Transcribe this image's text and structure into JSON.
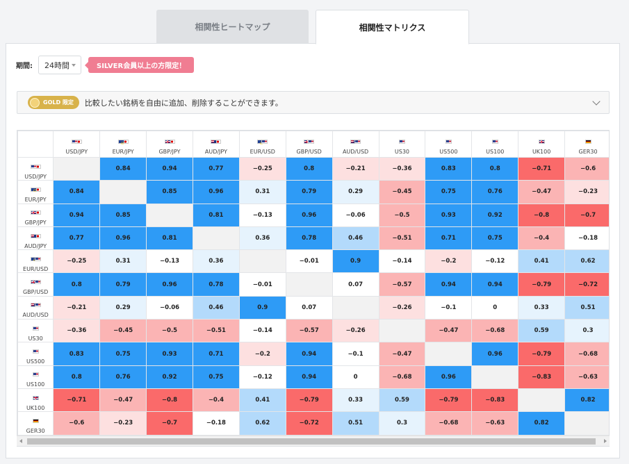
{
  "tabs": [
    {
      "label": "相関性ヒートマップ",
      "active": false
    },
    {
      "label": "相関性マトリクス",
      "active": true
    }
  ],
  "controls": {
    "period_label": "期間:",
    "period_value": "24時間",
    "silver_badge": "SILVER会員以上の方限定！"
  },
  "gold_bar": {
    "badge": "GOLD 限定",
    "description": "比較したい銘柄を自由に追加、削除することができます。"
  },
  "colors": {
    "strong_pos": "#2e9bf6",
    "mid_pos": "#b3dafb",
    "weak_pos": "#e6f3fd",
    "neutral": "#ffffff",
    "weak_neg": "#fde0e0",
    "mid_neg": "#fbb4b4",
    "strong_neg": "#fa6a6a",
    "self": "#f2f2f2"
  },
  "matrix": {
    "symbols": [
      "USD/JPY",
      "EUR/JPY",
      "GBP/JPY",
      "AUD/JPY",
      "EUR/USD",
      "GBP/USD",
      "AUD/USD",
      "US30",
      "US500",
      "US100",
      "UK100",
      "GER30"
    ],
    "flags": [
      [
        "us",
        "jp"
      ],
      [
        "eu",
        "jp"
      ],
      [
        "gb",
        "jp"
      ],
      [
        "au",
        "jp"
      ],
      [
        "eu",
        "us"
      ],
      [
        "gb",
        "us"
      ],
      [
        "au",
        "us"
      ],
      [
        "us"
      ],
      [
        "us"
      ],
      [
        "us"
      ],
      [
        "gb"
      ],
      [
        "de"
      ]
    ],
    "values": [
      [
        null,
        0.84,
        0.94,
        0.77,
        -0.25,
        0.8,
        -0.21,
        -0.36,
        0.83,
        0.8,
        -0.71,
        -0.6
      ],
      [
        0.84,
        null,
        0.85,
        0.96,
        0.31,
        0.79,
        0.29,
        -0.45,
        0.75,
        0.76,
        -0.47,
        -0.23
      ],
      [
        0.94,
        0.85,
        null,
        0.81,
        -0.13,
        0.96,
        -0.06,
        -0.5,
        0.93,
        0.92,
        -0.8,
        -0.7
      ],
      [
        0.77,
        0.96,
        0.81,
        null,
        0.36,
        0.78,
        0.46,
        -0.51,
        0.71,
        0.75,
        -0.4,
        -0.18
      ],
      [
        -0.25,
        0.31,
        -0.13,
        0.36,
        null,
        -0.01,
        0.9,
        -0.14,
        -0.2,
        -0.12,
        0.41,
        0.62
      ],
      [
        0.8,
        0.79,
        0.96,
        0.78,
        -0.01,
        null,
        0.07,
        -0.57,
        0.94,
        0.94,
        -0.79,
        -0.72
      ],
      [
        -0.21,
        0.29,
        -0.06,
        0.46,
        0.9,
        0.07,
        null,
        -0.26,
        -0.1,
        0,
        0.33,
        0.51
      ],
      [
        -0.36,
        -0.45,
        -0.5,
        -0.51,
        -0.14,
        -0.57,
        -0.26,
        null,
        -0.47,
        -0.68,
        0.59,
        0.3
      ],
      [
        0.83,
        0.75,
        0.93,
        0.71,
        -0.2,
        0.94,
        -0.1,
        -0.47,
        null,
        0.96,
        -0.79,
        -0.68
      ],
      [
        0.8,
        0.76,
        0.92,
        0.75,
        -0.12,
        0.94,
        0,
        -0.68,
        0.96,
        null,
        -0.83,
        -0.63
      ],
      [
        -0.71,
        -0.47,
        -0.8,
        -0.4,
        0.41,
        -0.79,
        0.33,
        0.59,
        -0.79,
        -0.83,
        null,
        0.82
      ],
      [
        -0.6,
        -0.23,
        -0.7,
        -0.18,
        0.62,
        -0.72,
        0.51,
        0.3,
        -0.68,
        -0.63,
        0.82,
        null
      ]
    ]
  }
}
